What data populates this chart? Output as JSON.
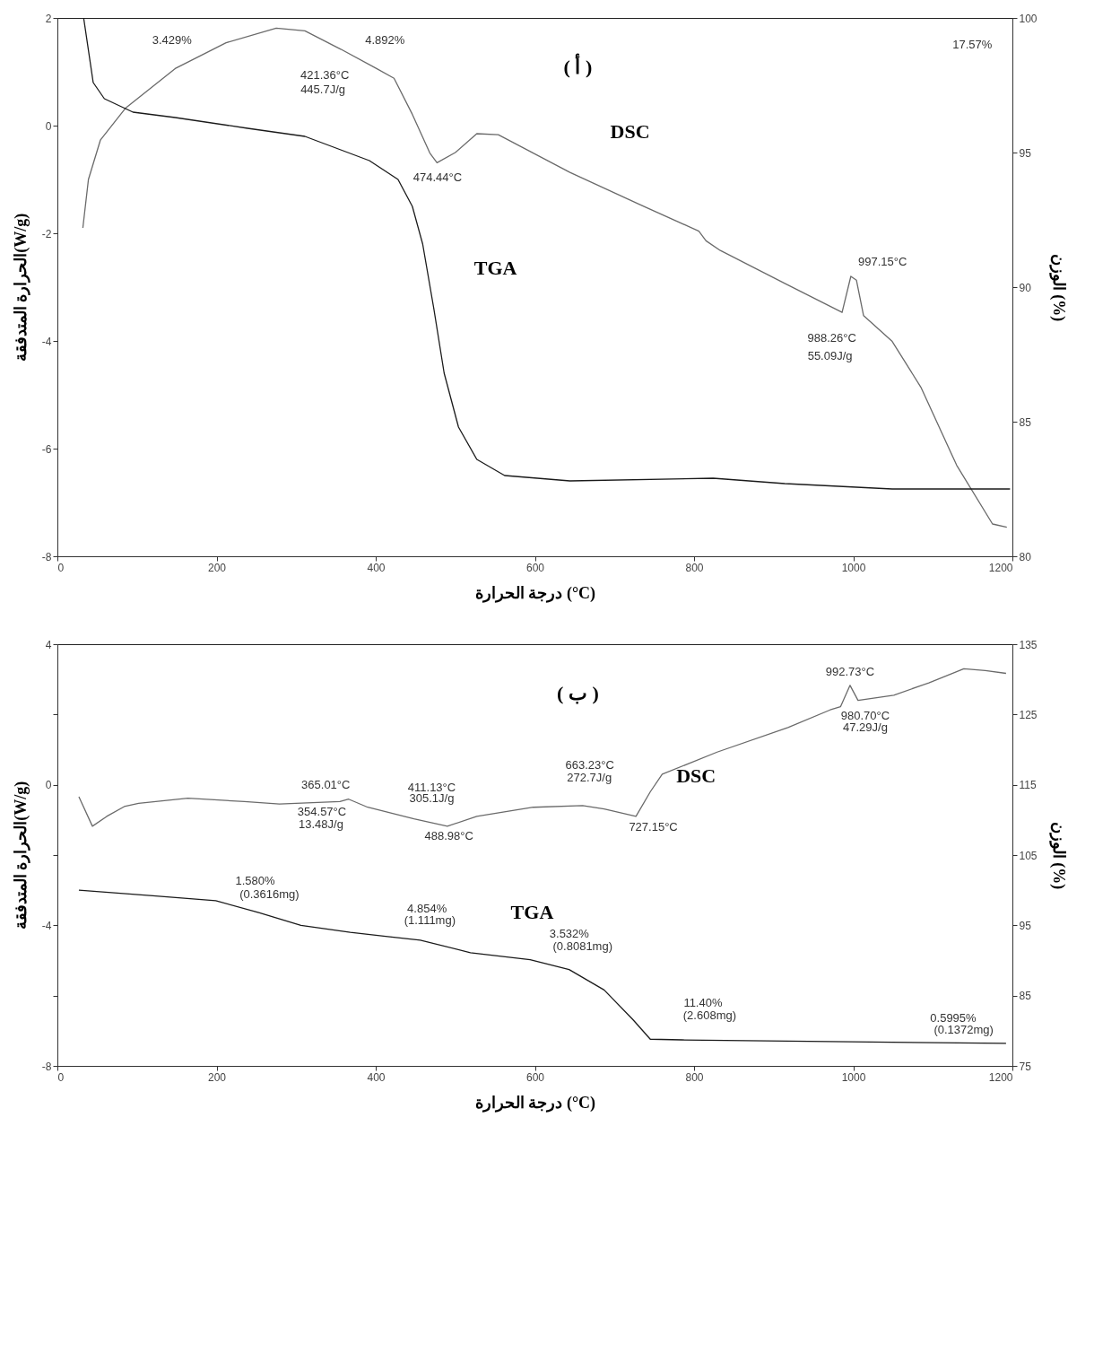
{
  "chart_data": [
    {
      "type": "line",
      "title": "( أ )",
      "xlabel": "درجة الحرارة (°C)",
      "ylabel": "الحرارة المتدفقة(W/g)",
      "y2label": "الوزن (%)",
      "xlim": [
        0,
        1200
      ],
      "xticks": [
        0,
        200,
        400,
        600,
        800,
        1000,
        1200
      ],
      "ylim": [
        -8,
        2
      ],
      "yticks": [
        -8,
        -6,
        -4,
        -2,
        0,
        2
      ],
      "y2lim": [
        80,
        100
      ],
      "y2ticks": [
        80,
        85,
        90,
        95,
        100
      ],
      "grid": false,
      "series": [
        {
          "name": "DSC",
          "color": "#6a6a6a",
          "x": [
            32,
            39,
            54,
            86,
            148,
            212,
            275,
            311,
            356,
            401,
            423,
            446,
            468,
            477,
            500,
            527,
            554,
            644,
            734,
            806,
            815,
            833,
            914,
            986,
            997,
            1004,
            1013,
            1049,
            1085,
            1130,
            1175,
            1193
          ],
          "values": [
            -1.9,
            -1.0,
            -0.27,
            0.33,
            1.06,
            1.54,
            1.81,
            1.76,
            1.42,
            1.06,
            0.88,
            0.21,
            -0.51,
            -0.69,
            -0.5,
            -0.15,
            -0.17,
            -0.87,
            -1.48,
            -1.96,
            -2.14,
            -2.32,
            -2.93,
            -3.47,
            -2.8,
            -2.87,
            -3.53,
            -4.01,
            -4.86,
            -6.31,
            -7.4,
            -7.46
          ]
        },
        {
          "name": "TGA",
          "color": "#1a1a1a",
          "axis": "y2",
          "x": [
            33,
            45,
            59,
            95,
            148,
            239,
            311,
            356,
            392,
            428,
            446,
            459,
            473,
            486,
            504,
            527,
            562,
            644,
            824,
            914,
            1049,
            1197
          ],
          "values": [
            100,
            97.6,
            97.0,
            96.5,
            96.3,
            95.9,
            95.6,
            95.1,
            94.7,
            94.0,
            93.0,
            91.6,
            89.2,
            86.8,
            84.8,
            83.6,
            83.0,
            82.8,
            82.9,
            82.7,
            82.5,
            82.5
          ]
        }
      ],
      "annotations": [
        "3.429%",
        "4.892%",
        "421.36°C",
        "445.7J/g",
        "474.44°C",
        "997.15°C",
        "988.26°C",
        "55.09J/g",
        "17.57%"
      ]
    },
    {
      "type": "line",
      "title": "( ب )",
      "xlabel": "درجة الحرارة (°C)",
      "ylabel": "الحرارة المتدفقة(W/g)",
      "y2label": "الوزن (%)",
      "xlim": [
        0,
        1200
      ],
      "xticks": [
        0,
        200,
        400,
        600,
        800,
        1000,
        1200
      ],
      "ylim": [
        -8,
        4
      ],
      "yticks": [
        -8,
        {
          "value": -6,
          "label": null
        },
        -4,
        {
          "value": -2,
          "label": null
        },
        0,
        {
          "value": 2,
          "label": null
        },
        4
      ],
      "y2lim": [
        75,
        135
      ],
      "y2ticks": [
        75,
        85,
        95,
        105,
        115,
        125,
        135
      ],
      "grid": false,
      "series": [
        {
          "name": "DSC",
          "color": "#6a6a6a",
          "x": [
            27,
            44,
            62,
            84,
            102,
            164,
            235,
            279,
            355,
            366,
            390,
            448,
            490,
            527,
            598,
            660,
            687,
            727,
            745,
            760,
            829,
            918,
            971,
            984,
            996,
            1006,
            1051,
            1095,
            1139,
            1166,
            1192
          ],
          "values": [
            -0.34,
            -1.18,
            -0.9,
            -0.62,
            -0.53,
            -0.38,
            -0.48,
            -0.55,
            -0.48,
            -0.41,
            -0.64,
            -0.97,
            -1.18,
            -0.9,
            -0.64,
            -0.59,
            -0.69,
            -0.9,
            -0.2,
            0.3,
            0.93,
            1.63,
            2.13,
            2.22,
            2.83,
            2.4,
            2.55,
            2.9,
            3.3,
            3.25,
            3.17
          ]
        },
        {
          "name": "TGA",
          "color": "#1a1a1a",
          "axis": "y2",
          "x": [
            27,
            120,
            199,
            253,
            306,
            368,
            415,
            456,
            519,
            594,
            643,
            687,
            723,
            745,
            785,
            1192
          ],
          "values": [
            100,
            99.2,
            98.5,
            96.8,
            95.0,
            94.0,
            93.4,
            92.9,
            91.1,
            90.1,
            88.7,
            85.8,
            81.6,
            78.8,
            78.7,
            78.2
          ]
        }
      ],
      "annotations": [
        "992.73°C",
        "980.70°C",
        "47.29J/g",
        "663.23°C",
        "272.7J/g",
        "365.01°C",
        "411.13°C",
        "305.1J/g",
        "354.57°C",
        "13.48J/g",
        "488.98°C",
        "727.15°C",
        "1.580%",
        "(0.3616mg)",
        "4.854%",
        "(1.111mg)",
        "3.532%",
        "(0.8081mg)",
        "11.40%",
        "(2.608mg)",
        "0.5995%",
        "(0.1372mg)"
      ]
    }
  ]
}
